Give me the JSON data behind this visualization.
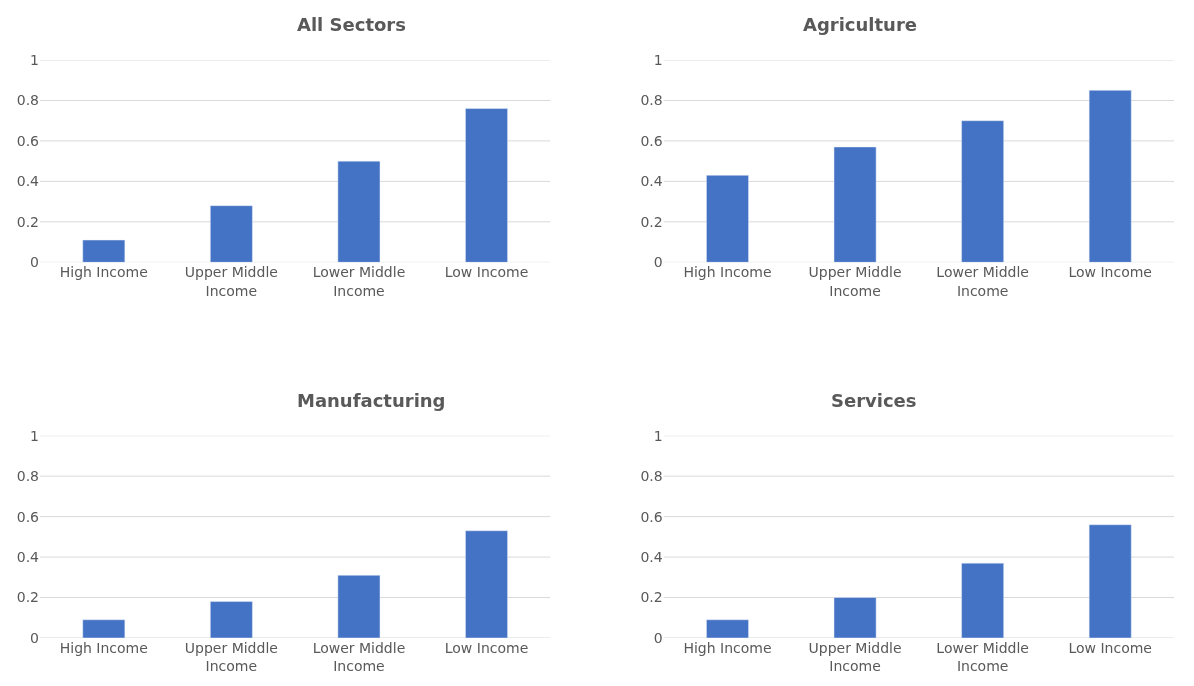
{
  "chart_data": [
    {
      "type": "bar",
      "title": "All Sectors",
      "categories": [
        "High Income",
        "Upper Middle Income",
        "Lower Middle Income",
        "Low Income"
      ],
      "values": [
        0.11,
        0.28,
        0.5,
        0.76
      ],
      "color": "#4472c4",
      "ylim": [
        0,
        1
      ],
      "yticks": [
        0,
        0.2,
        0.4,
        0.6,
        0.8,
        1
      ],
      "grid": "y"
    },
    {
      "type": "bar",
      "title": "Agriculture",
      "categories": [
        "High Income",
        "Upper Middle Income",
        "Lower Middle Income",
        "Low Income"
      ],
      "values": [
        0.43,
        0.57,
        0.7,
        0.85
      ],
      "color": "#4472c4",
      "ylim": [
        0,
        1
      ],
      "yticks": [
        0,
        0.2,
        0.4,
        0.6,
        0.8,
        1
      ],
      "grid": "y"
    },
    {
      "type": "bar",
      "title": "Manufacturing",
      "categories": [
        "High Income",
        "Upper Middle Income",
        "Lower Middle Income",
        "Low Income"
      ],
      "values": [
        0.09,
        0.18,
        0.31,
        0.53
      ],
      "color": "#4472c4",
      "ylim": [
        0,
        1
      ],
      "yticks": [
        0,
        0.2,
        0.4,
        0.6,
        0.8,
        1
      ],
      "grid": "y"
    },
    {
      "type": "bar",
      "title": "Services",
      "categories": [
        "High Income",
        "Upper Middle Income",
        "Lower Middle Income",
        "Low Income"
      ],
      "values": [
        0.09,
        0.2,
        0.37,
        0.56
      ],
      "color": "#4472c4",
      "ylim": [
        0,
        1
      ],
      "yticks": [
        0,
        0.2,
        0.4,
        0.6,
        0.8,
        1
      ],
      "grid": "y"
    }
  ]
}
